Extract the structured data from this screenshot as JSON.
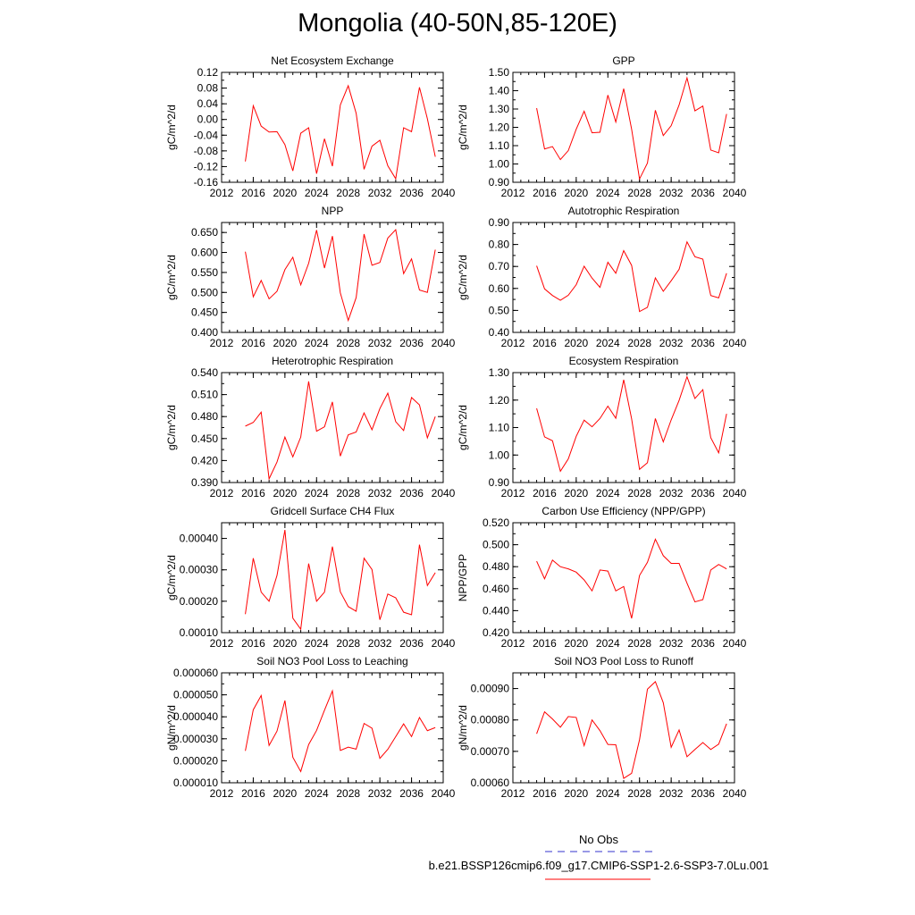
{
  "figure_title": "Mongolia (40-50N,85-120E)",
  "legend": {
    "obs_label": "No Obs",
    "obs_color": "#3333cc",
    "run_label": "b.e21.BSSP126cmip6.f09_g17.CMIP6-SSP1-2.6-SSP3-7.0Lu.001",
    "run_color": "#ff0000"
  },
  "chart_data": [
    {
      "type": "line",
      "title": "Net Ecosystem Exchange",
      "ylabel": "gC/m^2/d",
      "xlim": [
        2012,
        2040
      ],
      "xticks": [
        2012,
        2016,
        2020,
        2024,
        2028,
        2032,
        2036,
        2040
      ],
      "ylim": [
        -0.16,
        0.12
      ],
      "yticks": [
        "-0.16",
        "-0.12",
        "-0.08",
        "-0.04",
        "0.00",
        "0.04",
        "0.08",
        "0.12"
      ],
      "yminor": 0.02,
      "x": [
        2015,
        2016,
        2017,
        2018,
        2019,
        2020,
        2021,
        2022,
        2023,
        2024,
        2025,
        2026,
        2027,
        2028,
        2029,
        2030,
        2031,
        2032,
        2033,
        2034,
        2035,
        2036,
        2037,
        2038,
        2039
      ],
      "series": [
        {
          "color": "#ff0000",
          "values": [
            -0.107,
            0.035,
            -0.017,
            -0.032,
            -0.031,
            -0.064,
            -0.131,
            -0.035,
            -0.021,
            -0.138,
            -0.049,
            -0.119,
            0.037,
            0.086,
            0.016,
            -0.127,
            -0.068,
            -0.053,
            -0.118,
            -0.151,
            -0.021,
            -0.031,
            0.082,
            0.002,
            -0.095
          ]
        }
      ]
    },
    {
      "type": "line",
      "title": "GPP",
      "ylabel": "gC/m^2/d",
      "xlim": [
        2012,
        2040
      ],
      "xticks": [
        2012,
        2016,
        2020,
        2024,
        2028,
        2032,
        2036,
        2040
      ],
      "ylim": [
        0.9,
        1.5
      ],
      "yticks": [
        "0.90",
        "1.00",
        "1.10",
        "1.20",
        "1.30",
        "1.40",
        "1.50"
      ],
      "yminor": 0.05,
      "x": [
        2015,
        2016,
        2017,
        2018,
        2019,
        2020,
        2021,
        2022,
        2023,
        2024,
        2025,
        2026,
        2027,
        2028,
        2029,
        2030,
        2031,
        2032,
        2033,
        2034,
        2035,
        2036,
        2037,
        2038,
        2039
      ],
      "series": [
        {
          "color": "#ff0000",
          "values": [
            1.305,
            1.082,
            1.095,
            1.024,
            1.073,
            1.19,
            1.288,
            1.17,
            1.173,
            1.376,
            1.229,
            1.411,
            1.19,
            0.918,
            1.005,
            1.293,
            1.155,
            1.209,
            1.322,
            1.47,
            1.29,
            1.316,
            1.076,
            1.061,
            1.273
          ]
        }
      ]
    },
    {
      "type": "line",
      "title": "NPP",
      "ylabel": "gC/m^2/d",
      "xlim": [
        2012,
        2040
      ],
      "xticks": [
        2012,
        2016,
        2020,
        2024,
        2028,
        2032,
        2036,
        2040
      ],
      "ylim": [
        0.4,
        0.675
      ],
      "yticks": [
        "0.400",
        "0.450",
        "0.500",
        "0.550",
        "0.600",
        "0.650"
      ],
      "yminor": 0.025,
      "x": [
        2015,
        2016,
        2017,
        2018,
        2019,
        2020,
        2021,
        2022,
        2023,
        2024,
        2025,
        2026,
        2027,
        2028,
        2029,
        2030,
        2031,
        2032,
        2033,
        2034,
        2035,
        2036,
        2037,
        2038,
        2039
      ],
      "series": [
        {
          "color": "#ff0000",
          "values": [
            0.602,
            0.489,
            0.53,
            0.484,
            0.503,
            0.557,
            0.588,
            0.519,
            0.573,
            0.656,
            0.561,
            0.641,
            0.499,
            0.43,
            0.487,
            0.646,
            0.568,
            0.575,
            0.636,
            0.657,
            0.547,
            0.584,
            0.506,
            0.5,
            0.607
          ]
        }
      ]
    },
    {
      "type": "line",
      "title": "Autotrophic Respiration",
      "ylabel": "gC/m^2/d",
      "xlim": [
        2012,
        2040
      ],
      "xticks": [
        2012,
        2016,
        2020,
        2024,
        2028,
        2032,
        2036,
        2040
      ],
      "ylim": [
        0.4,
        0.9
      ],
      "yticks": [
        "0.40",
        "0.50",
        "0.60",
        "0.70",
        "0.80",
        "0.90"
      ],
      "yminor": 0.05,
      "x": [
        2015,
        2016,
        2017,
        2018,
        2019,
        2020,
        2021,
        2022,
        2023,
        2024,
        2025,
        2026,
        2027,
        2028,
        2029,
        2030,
        2031,
        2032,
        2033,
        2034,
        2035,
        2036,
        2037,
        2038,
        2039
      ],
      "series": [
        {
          "color": "#ff0000",
          "values": [
            0.703,
            0.598,
            0.568,
            0.546,
            0.569,
            0.617,
            0.701,
            0.647,
            0.605,
            0.719,
            0.669,
            0.772,
            0.705,
            0.495,
            0.514,
            0.648,
            0.587,
            0.635,
            0.687,
            0.812,
            0.744,
            0.733,
            0.568,
            0.557,
            0.669
          ]
        }
      ]
    },
    {
      "type": "line",
      "title": "Heterotrophic Respiration",
      "ylabel": "gC/m^2/d",
      "xlim": [
        2012,
        2040
      ],
      "xticks": [
        2012,
        2016,
        2020,
        2024,
        2028,
        2032,
        2036,
        2040
      ],
      "ylim": [
        0.39,
        0.54
      ],
      "yticks": [
        "0.390",
        "0.420",
        "0.450",
        "0.480",
        "0.510",
        "0.540"
      ],
      "yminor": 0.015,
      "x": [
        2015,
        2016,
        2017,
        2018,
        2019,
        2020,
        2021,
        2022,
        2023,
        2024,
        2025,
        2026,
        2027,
        2028,
        2029,
        2030,
        2031,
        2032,
        2033,
        2034,
        2035,
        2036,
        2037,
        2038,
        2039
      ],
      "series": [
        {
          "color": "#ff0000",
          "values": [
            0.467,
            0.472,
            0.486,
            0.395,
            0.418,
            0.452,
            0.425,
            0.452,
            0.528,
            0.46,
            0.466,
            0.5,
            0.426,
            0.455,
            0.459,
            0.485,
            0.462,
            0.491,
            0.512,
            0.473,
            0.461,
            0.506,
            0.496,
            0.451,
            0.48
          ]
        }
      ]
    },
    {
      "type": "line",
      "title": "Ecosystem Respiration",
      "ylabel": "gC/m^2/d",
      "xlim": [
        2012,
        2040
      ],
      "xticks": [
        2012,
        2016,
        2020,
        2024,
        2028,
        2032,
        2036,
        2040
      ],
      "ylim": [
        0.9,
        1.3
      ],
      "yticks": [
        "0.90",
        "1.00",
        "1.10",
        "1.20",
        "1.30"
      ],
      "yminor": 0.05,
      "x": [
        2015,
        2016,
        2017,
        2018,
        2019,
        2020,
        2021,
        2022,
        2023,
        2024,
        2025,
        2026,
        2027,
        2028,
        2029,
        2030,
        2031,
        2032,
        2033,
        2034,
        2035,
        2036,
        2037,
        2038,
        2039
      ],
      "series": [
        {
          "color": "#ff0000",
          "values": [
            1.17,
            1.066,
            1.052,
            0.941,
            0.986,
            1.068,
            1.127,
            1.103,
            1.133,
            1.178,
            1.134,
            1.274,
            1.132,
            0.948,
            0.972,
            1.133,
            1.048,
            1.128,
            1.199,
            1.285,
            1.206,
            1.238,
            1.063,
            1.008,
            1.15
          ]
        }
      ]
    },
    {
      "type": "line",
      "title": "Gridcell Surface CH4 Flux",
      "ylabel": "gC/m^2/d",
      "xlim": [
        2012,
        2040
      ],
      "xticks": [
        2012,
        2016,
        2020,
        2024,
        2028,
        2032,
        2036,
        2040
      ],
      "ylim": [
        0.0001,
        0.00045
      ],
      "yticks": [
        "0.00010",
        "0.00020",
        "0.00030",
        "0.00040"
      ],
      "yminor": 5e-05,
      "x": [
        2015,
        2016,
        2017,
        2018,
        2019,
        2020,
        2021,
        2022,
        2023,
        2024,
        2025,
        2026,
        2027,
        2028,
        2029,
        2030,
        2031,
        2032,
        2033,
        2034,
        2035,
        2036,
        2037,
        2038,
        2039
      ],
      "series": [
        {
          "color": "#ff0000",
          "values": [
            0.000159,
            0.000337,
            0.000229,
            0.0002,
            0.000282,
            0.000427,
            0.000146,
            0.000111,
            0.00032,
            0.0002,
            0.000229,
            0.000374,
            0.00023,
            0.000183,
            0.000168,
            0.000337,
            0.000301,
            0.000141,
            0.000223,
            0.000211,
            0.000165,
            0.000157,
            0.00038,
            0.00025,
            0.000291
          ]
        }
      ]
    },
    {
      "type": "line",
      "title": "Carbon Use Efficiency (NPP/GPP)",
      "ylabel": "NPP/GPP",
      "xlim": [
        2012,
        2040
      ],
      "xticks": [
        2012,
        2016,
        2020,
        2024,
        2028,
        2032,
        2036,
        2040
      ],
      "ylim": [
        0.42,
        0.52
      ],
      "yticks": [
        "0.420",
        "0.440",
        "0.460",
        "0.480",
        "0.500",
        "0.520"
      ],
      "yminor": 0.01,
      "x": [
        2015,
        2016,
        2017,
        2018,
        2019,
        2020,
        2021,
        2022,
        2023,
        2024,
        2025,
        2026,
        2027,
        2028,
        2029,
        2030,
        2031,
        2032,
        2033,
        2034,
        2035,
        2036,
        2037,
        2038,
        2039
      ],
      "series": [
        {
          "color": "#ff0000",
          "values": [
            0.485,
            0.469,
            0.486,
            0.48,
            0.478,
            0.475,
            0.468,
            0.458,
            0.477,
            0.476,
            0.458,
            0.462,
            0.433,
            0.472,
            0.484,
            0.505,
            0.49,
            0.483,
            0.483,
            0.465,
            0.448,
            0.45,
            0.477,
            0.482,
            0.478
          ]
        }
      ]
    },
    {
      "type": "line",
      "title": "Soil NO3 Pool Loss to Leaching",
      "ylabel": "gN/m^2/d",
      "xlim": [
        2012,
        2040
      ],
      "xticks": [
        2012,
        2016,
        2020,
        2024,
        2028,
        2032,
        2036,
        2040
      ],
      "ylim": [
        1e-05,
        6e-05
      ],
      "yticks": [
        "0.000010",
        "0.000020",
        "0.000030",
        "0.000040",
        "0.000050",
        "0.000060"
      ],
      "yminor": 5e-06,
      "x": [
        2015,
        2016,
        2017,
        2018,
        2019,
        2020,
        2021,
        2022,
        2023,
        2024,
        2025,
        2026,
        2027,
        2028,
        2029,
        2030,
        2031,
        2032,
        2033,
        2034,
        2035,
        2036,
        2037,
        2038,
        2039
      ],
      "series": [
        {
          "color": "#ff0000",
          "values": [
            2.45e-05,
            4.32e-05,
            4.97e-05,
            2.7e-05,
            3.35e-05,
            4.74e-05,
            2.16e-05,
            1.51e-05,
            2.74e-05,
            3.38e-05,
            4.3e-05,
            5.18e-05,
            2.47e-05,
            2.62e-05,
            2.53e-05,
            3.7e-05,
            3.48e-05,
            2.11e-05,
            2.52e-05,
            3.1e-05,
            3.68e-05,
            3.1e-05,
            3.97e-05,
            3.37e-05,
            3.51e-05
          ]
        }
      ]
    },
    {
      "type": "line",
      "title": "Soil NO3 Pool Loss to Runoff",
      "ylabel": "gN/m^2/d",
      "xlim": [
        2012,
        2040
      ],
      "xticks": [
        2012,
        2016,
        2020,
        2024,
        2028,
        2032,
        2036,
        2040
      ],
      "ylim": [
        0.0006,
        0.00095
      ],
      "yticks": [
        "0.00060",
        "0.00070",
        "0.00080",
        "0.00090"
      ],
      "yminor": 5e-05,
      "x": [
        2015,
        2016,
        2017,
        2018,
        2019,
        2020,
        2021,
        2022,
        2023,
        2024,
        2025,
        2026,
        2027,
        2028,
        2029,
        2030,
        2031,
        2032,
        2033,
        2034,
        2035,
        2036,
        2037,
        2038,
        2039
      ],
      "series": [
        {
          "color": "#ff0000",
          "values": [
            0.000756,
            0.000826,
            0.000803,
            0.000777,
            0.000811,
            0.000808,
            0.000718,
            0.0008,
            0.000766,
            0.000722,
            0.000721,
            0.000614,
            0.00063,
            0.000737,
            0.000898,
            0.000922,
            0.000855,
            0.000713,
            0.000768,
            0.000683,
            0.000706,
            0.000728,
            0.000706,
            0.000723,
            0.000788
          ]
        }
      ]
    }
  ]
}
